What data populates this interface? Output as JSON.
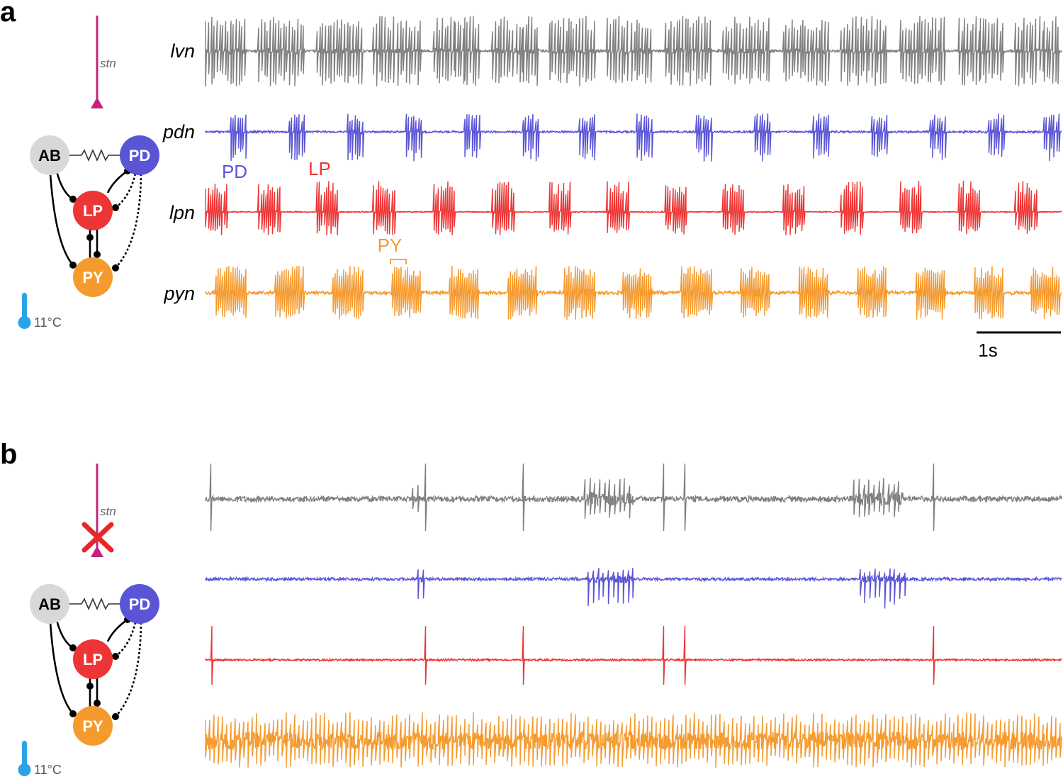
{
  "panels": [
    {
      "letter": "a",
      "stn_label": "stn",
      "stn_cut": false,
      "temperature": "11°C",
      "nodes": {
        "ab": "AB",
        "pd": "PD",
        "lp": "LP",
        "py": "PY"
      },
      "traces": [
        {
          "name": "lvn",
          "color": "#7f7f7f"
        },
        {
          "name": "pdn",
          "color": "#5a55d6"
        },
        {
          "name": "lpn",
          "color": "#ee3535"
        },
        {
          "name": "pyn",
          "color": "#f59a2d"
        }
      ],
      "burst_labels": {
        "pd": "PD",
        "lp": "LP",
        "py": "PY"
      },
      "scale_bar": "1s"
    },
    {
      "letter": "b",
      "stn_label": "stn",
      "stn_cut": true,
      "temperature": "11°C",
      "nodes": {
        "ab": "AB",
        "pd": "PD",
        "lp": "LP",
        "py": "PY"
      },
      "traces": [
        {
          "name": "",
          "color": "#7f7f7f"
        },
        {
          "name": "",
          "color": "#5a55d6"
        },
        {
          "name": "",
          "color": "#ee3535"
        },
        {
          "name": "",
          "color": "#f59a2d"
        }
      ]
    }
  ],
  "colors": {
    "stn": "#c4237b",
    "ab": "#d8d8d8",
    "pd": "#5a55d6",
    "lp": "#ee3535",
    "py": "#f59a2d",
    "thermometer": "#2aa3e8",
    "cut": "#e8262a"
  }
}
